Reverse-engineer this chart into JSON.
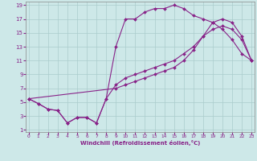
{
  "xlabel": "Windchill (Refroidissement éolien,°C)",
  "background_color": "#cde8e8",
  "line_color": "#882288",
  "xmin": 0,
  "xmax": 23,
  "ymin": 1,
  "ymax": 19,
  "yticks": [
    1,
    3,
    5,
    7,
    9,
    11,
    13,
    15,
    17,
    19
  ],
  "xticks": [
    0,
    1,
    2,
    3,
    4,
    5,
    6,
    7,
    8,
    9,
    10,
    11,
    12,
    13,
    14,
    15,
    16,
    17,
    18,
    19,
    20,
    21,
    22,
    23
  ],
  "series1_x": [
    0,
    1,
    2,
    3,
    4,
    5,
    6,
    7,
    8,
    9,
    10,
    11,
    12,
    13,
    14,
    15,
    16,
    17,
    18,
    19,
    20,
    21,
    22,
    23
  ],
  "series1_y": [
    5.5,
    4.8,
    4.0,
    3.8,
    2.0,
    2.8,
    2.8,
    2.0,
    5.5,
    13.0,
    17.0,
    17.0,
    18.0,
    18.5,
    18.5,
    19.0,
    18.5,
    17.5,
    17.0,
    16.5,
    15.5,
    14.0,
    12.0,
    11.0
  ],
  "series2_x": [
    0,
    1,
    2,
    3,
    4,
    5,
    6,
    7,
    8,
    9,
    10,
    11,
    12,
    13,
    14,
    15,
    16,
    17,
    18,
    19,
    20,
    21,
    22,
    23
  ],
  "series2_y": [
    5.5,
    4.8,
    4.0,
    3.8,
    2.0,
    2.8,
    2.8,
    2.0,
    5.5,
    7.5,
    8.5,
    9.0,
    9.5,
    10.0,
    10.5,
    11.0,
    12.0,
    13.0,
    14.5,
    15.5,
    16.0,
    15.5,
    14.0,
    11.0
  ],
  "series3_x": [
    0,
    9,
    10,
    11,
    12,
    13,
    14,
    15,
    16,
    17,
    18,
    19,
    20,
    21,
    22,
    23
  ],
  "series3_y": [
    5.5,
    7.0,
    7.5,
    8.0,
    8.5,
    9.0,
    9.5,
    10.0,
    11.0,
    12.5,
    14.5,
    16.5,
    17.0,
    16.5,
    14.5,
    11.0
  ]
}
